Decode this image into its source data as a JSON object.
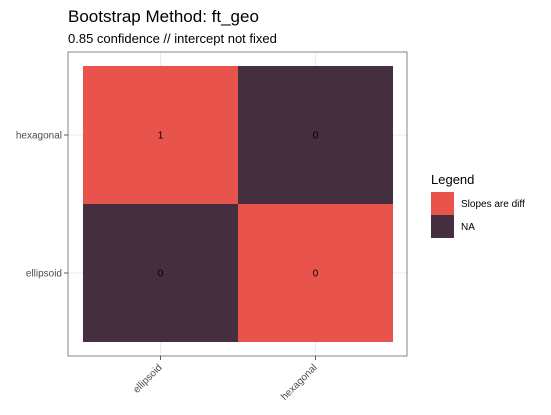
{
  "chart_data": {
    "type": "heatmap",
    "title": "Bootstrap Method: ft_geo",
    "subtitle": "0.85 confidence // intercept not fixed",
    "xlabel": "",
    "ylabel": "",
    "x_categories": [
      "ellipsoid",
      "hexagonal"
    ],
    "y_categories": [
      "ellipsoid",
      "hexagonal"
    ],
    "cells": [
      {
        "x": "ellipsoid",
        "y": "hexagonal",
        "label": "1",
        "fill": "Slopes are diff"
      },
      {
        "x": "hexagonal",
        "y": "hexagonal",
        "label": "0",
        "fill": "NA"
      },
      {
        "x": "ellipsoid",
        "y": "ellipsoid",
        "label": "0",
        "fill": "NA"
      },
      {
        "x": "hexagonal",
        "y": "ellipsoid",
        "label": "0",
        "fill": "Slopes are diff"
      }
    ],
    "legend": {
      "title": "Legend",
      "position": "right",
      "items": [
        {
          "label": "Slopes are diff",
          "color": "#e8534c"
        },
        {
          "label": "NA",
          "color": "#452e3d"
        }
      ]
    },
    "grid": true,
    "x_tick_rotation_deg": 45
  }
}
